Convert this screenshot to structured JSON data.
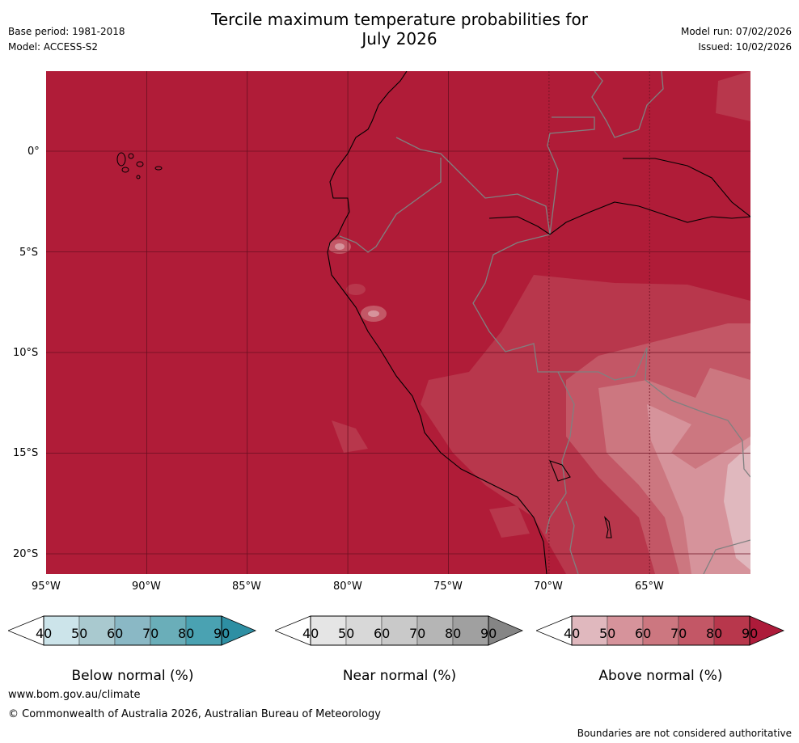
{
  "header": {
    "title_line1": "Tercile maximum temperature probabilities for",
    "title_line2": "July 2026",
    "base_period": "Base period: 1981-2018",
    "model": "Model: ACCESS-S2",
    "model_run": "Model run: 07/02/2026",
    "issued": "Issued: 10/02/2026"
  },
  "map": {
    "lat_labels": [
      "0°",
      "5°S",
      "10°S",
      "15°S",
      "20°S"
    ],
    "lon_labels": [
      "95°W",
      "90°W",
      "85°W",
      "80°W",
      "75°W",
      "70°W",
      "65°W"
    ],
    "background_color": "#b01c38"
  },
  "colorbars": [
    {
      "label": "Below normal (%)",
      "ticks": [
        "40",
        "50",
        "60",
        "70",
        "80",
        "90"
      ],
      "colors": [
        "#ffffff",
        "#cce4ea",
        "#a9c9cf",
        "#8ab8c5",
        "#6aaeb9",
        "#4aa2b2",
        "#2e8fa3"
      ]
    },
    {
      "label": "Near normal (%)",
      "ticks": [
        "40",
        "50",
        "60",
        "70",
        "80",
        "90"
      ],
      "colors": [
        "#ffffff",
        "#e5e5e5",
        "#d8d8d8",
        "#c9c9c9",
        "#b5b5b5",
        "#a0a0a0",
        "#858585"
      ]
    },
    {
      "label": "Above normal (%)",
      "ticks": [
        "40",
        "50",
        "60",
        "70",
        "80",
        "90"
      ],
      "colors": [
        "#ffffff",
        "#e0b8be",
        "#d6939b",
        "#cc7780",
        "#c35766",
        "#b8374c",
        "#ad1b3a"
      ]
    }
  ],
  "footer": {
    "url": "www.bom.gov.au/climate",
    "copyright": "© Commonwealth of Australia 2026, Australian Bureau of Meteorology",
    "disclaimer": "Boundaries are not considered authoritative"
  }
}
